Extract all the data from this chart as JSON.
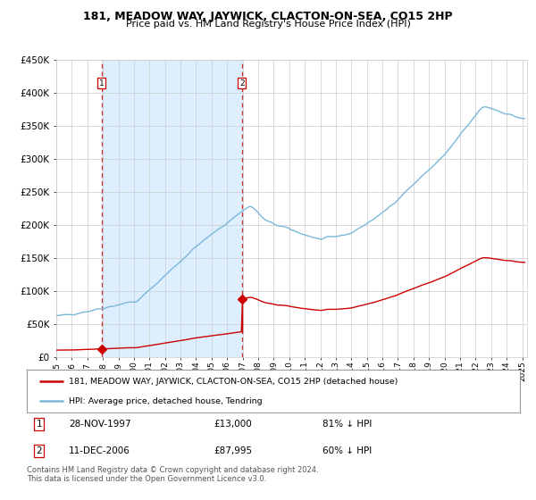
{
  "title": "181, MEADOW WAY, JAYWICK, CLACTON-ON-SEA, CO15 2HP",
  "subtitle": "Price paid vs. HM Land Registry's House Price Index (HPI)",
  "legend_entry1": "181, MEADOW WAY, JAYWICK, CLACTON-ON-SEA, CO15 2HP (detached house)",
  "legend_entry2": "HPI: Average price, detached house, Tendring",
  "annotation1_date": "28-NOV-1997",
  "annotation1_price": "£13,000",
  "annotation1_hpi": "81% ↓ HPI",
  "annotation2_date": "11-DEC-2006",
  "annotation2_price": "£87,995",
  "annotation2_hpi": "60% ↓ HPI",
  "footer": "Contains HM Land Registry data © Crown copyright and database right 2024.\nThis data is licensed under the Open Government Licence v3.0.",
  "purchase1_year": 1997.91,
  "purchase1_price": 13000,
  "purchase2_year": 2006.95,
  "purchase2_price": 87995,
  "hpi_color": "#7ab8d9",
  "property_color": "#cc0000",
  "shade_color": "#ddeeff",
  "grid_color": "#cccccc",
  "background_color": "#ffffff",
  "ylim": [
    0,
    450000
  ],
  "yticks": [
    0,
    50000,
    100000,
    150000,
    200000,
    250000,
    300000,
    350000,
    400000,
    450000
  ],
  "ytick_labels": [
    "£0",
    "£50K",
    "£100K",
    "£150K",
    "£200K",
    "£250K",
    "£300K",
    "£350K",
    "£400K",
    "£450K"
  ]
}
